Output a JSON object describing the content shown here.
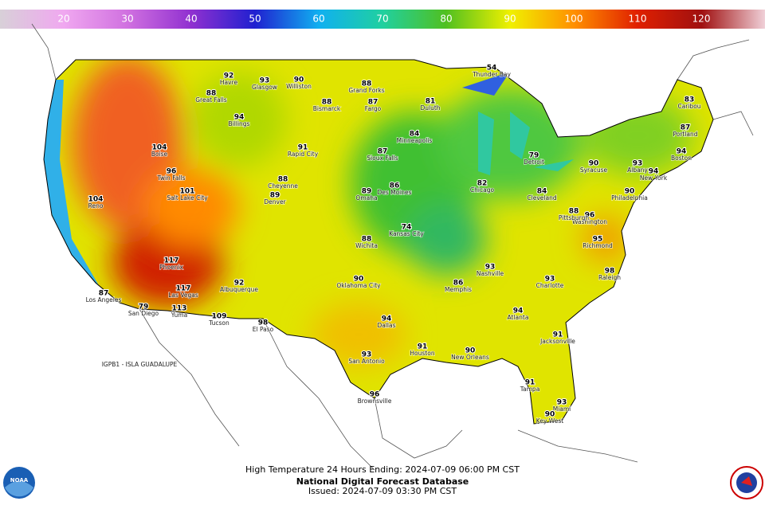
{
  "colorbar": {
    "range": [
      10,
      130
    ],
    "ticks": [
      20,
      30,
      40,
      50,
      60,
      70,
      80,
      90,
      100,
      110,
      120
    ]
  },
  "stations": [
    {
      "name": "Havre",
      "temp": 92
    },
    {
      "name": "Glasgow",
      "temp": 93
    },
    {
      "name": "Williston",
      "temp": 90
    },
    {
      "name": "Bismarck",
      "temp": 88
    },
    {
      "name": "Grand Forks",
      "temp": 88
    },
    {
      "name": "Fargo",
      "temp": 87
    },
    {
      "name": "Great Falls",
      "temp": 88
    },
    {
      "name": "Billings",
      "temp": 94
    },
    {
      "name": "Boise",
      "temp": 104
    },
    {
      "name": "Twin Falls",
      "temp": 96
    },
    {
      "name": "Salt Lake City",
      "temp": 101
    },
    {
      "name": "Reno",
      "temp": 104
    },
    {
      "name": "Los Angeles",
      "temp": 87
    },
    {
      "name": "San Diego",
      "temp": 79
    },
    {
      "name": "Phoenix",
      "temp": 117
    },
    {
      "name": "Yuma",
      "temp": 113
    },
    {
      "name": "Las Vegas",
      "temp": 117
    },
    {
      "name": "Tucson",
      "temp": 109
    },
    {
      "name": "Albuquerque",
      "temp": 92
    },
    {
      "name": "El Paso",
      "temp": 98
    },
    {
      "name": "Denver",
      "temp": 89
    },
    {
      "name": "Cheyenne",
      "temp": 88
    },
    {
      "name": "Rapid City",
      "temp": 91
    },
    {
      "name": "Sioux Falls",
      "temp": 87
    },
    {
      "name": "Minneapolis",
      "temp": 84
    },
    {
      "name": "Duluth",
      "temp": 81
    },
    {
      "name": "Des Moines",
      "temp": 86
    },
    {
      "name": "Omaha",
      "temp": 89
    },
    {
      "name": "Kansas City",
      "temp": 74
    },
    {
      "name": "Wichita",
      "temp": 88
    },
    {
      "name": "Oklahoma City",
      "temp": 90
    },
    {
      "name": "Dallas",
      "temp": 94
    },
    {
      "name": "Houston",
      "temp": 91
    },
    {
      "name": "San Antonio",
      "temp": 93
    },
    {
      "name": "Brownsville",
      "temp": 96
    },
    {
      "name": "New Orleans",
      "temp": 90
    },
    {
      "name": "Memphis",
      "temp": 86
    },
    {
      "name": "Chicago",
      "temp": 82
    },
    {
      "name": "Detroit",
      "temp": 79
    },
    {
      "name": "Cleveland",
      "temp": 84
    },
    {
      "name": "Nashville",
      "temp": 93
    },
    {
      "name": "Atlanta",
      "temp": 94
    },
    {
      "name": "Jacksonville",
      "temp": 91
    },
    {
      "name": "Tampa",
      "temp": 91
    },
    {
      "name": "Miami",
      "temp": 93
    },
    {
      "name": "Key West",
      "temp": 90
    },
    {
      "name": "Charlotte",
      "temp": 93
    },
    {
      "name": "Richmond",
      "temp": 95
    },
    {
      "name": "Washington",
      "temp": 96
    },
    {
      "name": "Philadelphia",
      "temp": 90
    },
    {
      "name": "New York",
      "temp": 94
    },
    {
      "name": "Boston",
      "temp": 94
    },
    {
      "name": "Albany",
      "temp": 93
    },
    {
      "name": "Portland",
      "temp": 87
    },
    {
      "name": "Caribou",
      "temp": 83
    },
    {
      "name": "Syracuse",
      "temp": 90
    },
    {
      "name": "Pittsburgh",
      "temp": 88
    },
    {
      "name": "Raleigh",
      "temp": 98
    },
    {
      "name": "Thunder Bay",
      "temp": 54
    }
  ],
  "offshore_label": "IGPB1 - ISLA GUADALUPE",
  "caption": {
    "line1": "High Temperature 24 Hours Ending: 2024-07-09 06:00 PM CST",
    "line2": "National Digital Forecast Database",
    "line3": "Issued: 2024-07-09 03:30 PM CST"
  },
  "logo_left": "NOAA"
}
